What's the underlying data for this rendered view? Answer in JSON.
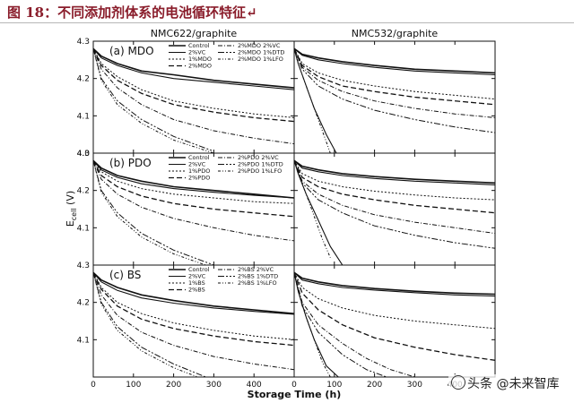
{
  "header": {
    "title": "图 18：不同添加剂体系的电池循环特征↵"
  },
  "watermark": {
    "text": "头条 @未来智库"
  },
  "chart_data": {
    "type": "line",
    "xlabel": "Storage Time (h)",
    "ylabel_main": "E",
    "ylabel_sub": "cell",
    "ylabel_unit": " (V)",
    "xlim": [
      0,
      500
    ],
    "ylim": [
      4.0,
      4.3
    ],
    "xticks": [
      0,
      100,
      200,
      300,
      400,
      500
    ],
    "xtick_labels": [
      "0",
      "100",
      "200",
      "300",
      "400",
      "0",
      "100",
      "200",
      "300",
      "400"
    ],
    "yticks": [
      4.0,
      4.1,
      4.2,
      4.3
    ],
    "ytick_labels": [
      "4.0",
      "4.1",
      "4.2",
      "4.3"
    ],
    "columns": [
      "NMC622/graphite",
      "NMC532/graphite"
    ],
    "panels": [
      {
        "label": "(a) MDO",
        "legend": [
          "Control",
          "2%VC",
          "1%MDO",
          "2%MDO",
          "2%MDO 2%VC",
          "2%MDO 1%DTD",
          "2%MDO 1%LFO"
        ],
        "left": [
          {
            "x": [
              0,
              20,
              60,
              120,
              200,
              300,
              400,
              500
            ],
            "y": [
              4.28,
              4.26,
              4.24,
              4.22,
              4.21,
              4.195,
              4.185,
              4.175
            ]
          },
          {
            "x": [
              0,
              20,
              60,
              120,
              200,
              300,
              400,
              500
            ],
            "y": [
              4.28,
              4.255,
              4.235,
              4.215,
              4.2,
              4.19,
              4.18,
              4.17
            ]
          },
          {
            "x": [
              0,
              20,
              60,
              120,
              200,
              300,
              400,
              500
            ],
            "y": [
              4.28,
              4.24,
              4.205,
              4.17,
              4.14,
              4.12,
              4.105,
              4.095
            ]
          },
          {
            "x": [
              0,
              20,
              60,
              120,
              200,
              300,
              400,
              500
            ],
            "y": [
              4.28,
              4.235,
              4.195,
              4.16,
              4.13,
              4.11,
              4.095,
              4.085
            ]
          },
          {
            "x": [
              0,
              20,
              60,
              120,
              200,
              300,
              400,
              500
            ],
            "y": [
              4.28,
              4.225,
              4.175,
              4.13,
              4.09,
              4.06,
              4.04,
              4.025
            ]
          },
          {
            "x": [
              0,
              20,
              60,
              120,
              200,
              300
            ],
            "y": [
              4.28,
              4.2,
              4.14,
              4.09,
              4.045,
              4.005
            ]
          },
          {
            "x": [
              0,
              20,
              60,
              120,
              200,
              300
            ],
            "y": [
              4.28,
              4.195,
              4.13,
              4.08,
              4.035,
              4.0
            ]
          }
        ],
        "right": [
          {
            "x": [
              0,
              20,
              60,
              120,
              200,
              300,
              400,
              500
            ],
            "y": [
              4.28,
              4.265,
              4.255,
              4.245,
              4.235,
              4.225,
              4.22,
              4.215
            ]
          },
          {
            "x": [
              0,
              20,
              60,
              120,
              200,
              300,
              400,
              500
            ],
            "y": [
              4.28,
              4.262,
              4.25,
              4.24,
              4.23,
              4.22,
              4.215,
              4.21
            ]
          },
          {
            "x": [
              0,
              20,
              60,
              120,
              200,
              300,
              400,
              500
            ],
            "y": [
              4.28,
              4.24,
              4.215,
              4.195,
              4.18,
              4.165,
              4.155,
              4.145
            ]
          },
          {
            "x": [
              0,
              20,
              60,
              120,
              200,
              300,
              400,
              500
            ],
            "y": [
              4.28,
              4.235,
              4.205,
              4.18,
              4.165,
              4.15,
              4.14,
              4.13
            ]
          },
          {
            "x": [
              0,
              20,
              60,
              120,
              200,
              300,
              400,
              500
            ],
            "y": [
              4.28,
              4.23,
              4.195,
              4.165,
              4.14,
              4.12,
              4.105,
              4.095
            ]
          },
          {
            "x": [
              0,
              20,
              60,
              120,
              200,
              300,
              400,
              500
            ],
            "y": [
              4.28,
              4.225,
              4.18,
              4.145,
              4.115,
              4.09,
              4.07,
              4.055
            ]
          },
          {
            "x": [
              0,
              10,
              30,
              50,
              70,
              90
            ],
            "y": [
              4.28,
              4.24,
              4.18,
              4.12,
              4.06,
              4.0
            ]
          },
          {
            "x": [
              0,
              10,
              30,
              50,
              80,
              105
            ],
            "y": [
              4.28,
              4.24,
              4.18,
              4.12,
              4.05,
              4.0
            ]
          }
        ]
      },
      {
        "label": "(b) PDO",
        "legend": [
          "Control",
          "2%VC",
          "1%PDO",
          "2%PDO",
          "2%PDO 2%VC",
          "2%PDO 1%DTD",
          "2%PDO 1%LFO"
        ],
        "left": [
          {
            "x": [
              0,
              20,
              60,
              120,
              200,
              300,
              400,
              500
            ],
            "y": [
              4.28,
              4.26,
              4.24,
              4.225,
              4.21,
              4.2,
              4.19,
              4.18
            ]
          },
          {
            "x": [
              0,
              20,
              60,
              120,
              200,
              300,
              400,
              500
            ],
            "y": [
              4.28,
              4.255,
              4.235,
              4.218,
              4.205,
              4.195,
              4.187,
              4.18
            ]
          },
          {
            "x": [
              0,
              20,
              60,
              120,
              200,
              300,
              400,
              500
            ],
            "y": [
              4.28,
              4.25,
              4.225,
              4.205,
              4.19,
              4.18,
              4.17,
              4.165
            ]
          },
          {
            "x": [
              0,
              20,
              60,
              120,
              200,
              300,
              400,
              500
            ],
            "y": [
              4.28,
              4.24,
              4.21,
              4.185,
              4.165,
              4.15,
              4.14,
              4.13
            ]
          },
          {
            "x": [
              0,
              20,
              60,
              120,
              200,
              300,
              400,
              500
            ],
            "y": [
              4.28,
              4.23,
              4.19,
              4.155,
              4.125,
              4.1,
              4.08,
              4.065
            ]
          },
          {
            "x": [
              0,
              20,
              60,
              120,
              200,
              300
            ],
            "y": [
              4.28,
              4.2,
              4.14,
              4.085,
              4.04,
              4.0
            ]
          },
          {
            "x": [
              0,
              20,
              60,
              120,
              200,
              280
            ],
            "y": [
              4.28,
              4.195,
              4.13,
              4.075,
              4.03,
              4.0
            ]
          }
        ],
        "right": [
          {
            "x": [
              0,
              20,
              60,
              120,
              200,
              300,
              400,
              500
            ],
            "y": [
              4.28,
              4.265,
              4.255,
              4.245,
              4.237,
              4.23,
              4.225,
              4.22
            ]
          },
          {
            "x": [
              0,
              20,
              60,
              120,
              200,
              300,
              400,
              500
            ],
            "y": [
              4.28,
              4.26,
              4.25,
              4.24,
              4.232,
              4.225,
              4.22,
              4.215
            ]
          },
          {
            "x": [
              0,
              20,
              60,
              120,
              200,
              300,
              400,
              500
            ],
            "y": [
              4.28,
              4.245,
              4.225,
              4.21,
              4.198,
              4.188,
              4.18,
              4.175
            ]
          },
          {
            "x": [
              0,
              20,
              60,
              120,
              200,
              300,
              400,
              500
            ],
            "y": [
              4.28,
              4.235,
              4.21,
              4.19,
              4.175,
              4.16,
              4.15,
              4.14
            ]
          },
          {
            "x": [
              0,
              20,
              60,
              120,
              200,
              300,
              400,
              500
            ],
            "y": [
              4.28,
              4.225,
              4.19,
              4.16,
              4.135,
              4.115,
              4.1,
              4.085
            ]
          },
          {
            "x": [
              0,
              20,
              60,
              120,
              200,
              300,
              400,
              500
            ],
            "y": [
              4.28,
              4.22,
              4.175,
              4.14,
              4.105,
              4.08,
              4.06,
              4.045
            ]
          },
          {
            "x": [
              0,
              10,
              30,
              50,
              70,
              90
            ],
            "y": [
              4.28,
              4.245,
              4.19,
              4.13,
              4.07,
              4.02
            ]
          },
          {
            "x": [
              0,
              10,
              30,
              60,
              90,
              120
            ],
            "y": [
              4.28,
              4.245,
              4.19,
              4.12,
              4.05,
              4.0
            ]
          }
        ]
      },
      {
        "label": "(c) BS",
        "legend": [
          "Control",
          "2%VC",
          "1%BS",
          "2%BS",
          "2%BS 2%VC",
          "2%BS 1%DTD",
          "2%BS 1%LFO"
        ],
        "left": [
          {
            "x": [
              0,
              20,
              60,
              120,
              200,
              300,
              400,
              500
            ],
            "y": [
              4.28,
              4.26,
              4.24,
              4.22,
              4.205,
              4.19,
              4.18,
              4.17
            ]
          },
          {
            "x": [
              0,
              20,
              60,
              120,
              200,
              300,
              400,
              500
            ],
            "y": [
              4.28,
              4.255,
              4.232,
              4.212,
              4.198,
              4.185,
              4.176,
              4.168
            ]
          },
          {
            "x": [
              0,
              20,
              60,
              120,
              200,
              300,
              400,
              500
            ],
            "y": [
              4.28,
              4.24,
              4.2,
              4.17,
              4.145,
              4.125,
              4.11,
              4.1
            ]
          },
          {
            "x": [
              0,
              20,
              60,
              120,
              200,
              300,
              400,
              500
            ],
            "y": [
              4.28,
              4.235,
              4.19,
              4.155,
              4.13,
              4.11,
              4.095,
              4.085
            ]
          },
          {
            "x": [
              0,
              20,
              60,
              120,
              200,
              300,
              400,
              500
            ],
            "y": [
              4.28,
              4.22,
              4.165,
              4.12,
              4.085,
              4.055,
              4.035,
              4.02
            ]
          },
          {
            "x": [
              0,
              20,
              60,
              120,
              200,
              280
            ],
            "y": [
              4.28,
              4.2,
              4.135,
              4.08,
              4.035,
              4.0
            ]
          },
          {
            "x": [
              0,
              20,
              60,
              120,
              200,
              260
            ],
            "y": [
              4.28,
              4.195,
              4.125,
              4.07,
              4.025,
              4.0
            ]
          }
        ],
        "right": [
          {
            "x": [
              0,
              20,
              60,
              120,
              200,
              300,
              400,
              500
            ],
            "y": [
              4.28,
              4.265,
              4.255,
              4.245,
              4.237,
              4.23,
              4.225,
              4.222
            ]
          },
          {
            "x": [
              0,
              20,
              60,
              120,
              200,
              300,
              400,
              500
            ],
            "y": [
              4.28,
              4.26,
              4.25,
              4.24,
              4.233,
              4.226,
              4.22,
              4.217
            ]
          },
          {
            "x": [
              0,
              20,
              60,
              120,
              200,
              300,
              400,
              500
            ],
            "y": [
              4.28,
              4.24,
              4.21,
              4.185,
              4.165,
              4.15,
              4.14,
              4.13
            ]
          },
          {
            "x": [
              0,
              20,
              60,
              120,
              200,
              300,
              400,
              500
            ],
            "y": [
              4.28,
              4.225,
              4.18,
              4.14,
              4.105,
              4.08,
              4.06,
              4.045
            ]
          },
          {
            "x": [
              0,
              20,
              60,
              120,
              180,
              240,
              300
            ],
            "y": [
              4.28,
              4.2,
              4.14,
              4.09,
              4.05,
              4.02,
              4.0
            ]
          },
          {
            "x": [
              0,
              20,
              60,
              120,
              180,
              230
            ],
            "y": [
              4.28,
              4.19,
              4.12,
              4.06,
              4.02,
              4.0
            ]
          },
          {
            "x": [
              0,
              10,
              30,
              50,
              70,
              90
            ],
            "y": [
              4.28,
              4.23,
              4.16,
              4.1,
              4.04,
              4.0
            ]
          },
          {
            "x": [
              0,
              10,
              30,
              50,
              80,
              110
            ],
            "y": [
              4.28,
              4.23,
              4.16,
              4.1,
              4.03,
              4.0
            ]
          }
        ]
      }
    ]
  }
}
